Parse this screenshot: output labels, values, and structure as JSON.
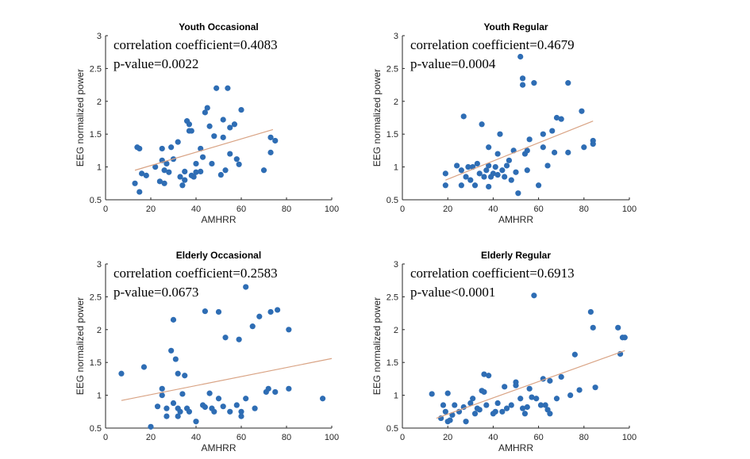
{
  "chart_data": [
    {
      "type": "scatter",
      "title": "Youth Occasional",
      "xlabel": "AMHRR",
      "ylabel": "EEG normalized power",
      "xlim": [
        0,
        100
      ],
      "ylim": [
        0.5,
        3
      ],
      "xticks": [
        "0",
        "20",
        "40",
        "60",
        "80",
        "100"
      ],
      "yticks": [
        "0.5",
        "1",
        "1.5",
        "2",
        "2.5",
        "3"
      ],
      "annotations": [
        "correlation coefficient=0.4083",
        "p-value=0.0022"
      ],
      "marker_color": "#2e6db4",
      "fit_color": "#d9a384",
      "fit_line": [
        [
          13,
          0.95
        ],
        [
          74,
          1.57
        ]
      ],
      "points": [
        [
          13,
          0.75
        ],
        [
          14,
          1.3
        ],
        [
          15,
          0.62
        ],
        [
          15,
          1.28
        ],
        [
          16,
          0.9
        ],
        [
          18,
          0.87
        ],
        [
          22,
          1.0
        ],
        [
          24,
          0.78
        ],
        [
          25,
          1.28
        ],
        [
          25,
          1.1
        ],
        [
          26,
          0.75
        ],
        [
          26,
          0.95
        ],
        [
          27,
          1.05
        ],
        [
          28,
          0.92
        ],
        [
          29,
          1.3
        ],
        [
          30,
          1.12
        ],
        [
          32,
          1.38
        ],
        [
          33,
          0.85
        ],
        [
          34,
          0.72
        ],
        [
          35,
          0.8
        ],
        [
          35,
          0.93
        ],
        [
          36,
          1.7
        ],
        [
          37,
          1.55
        ],
        [
          37,
          1.65
        ],
        [
          38,
          0.87
        ],
        [
          38,
          1.55
        ],
        [
          39,
          0.85
        ],
        [
          40,
          1.05
        ],
        [
          40,
          0.92
        ],
        [
          42,
          1.28
        ],
        [
          42,
          0.93
        ],
        [
          43,
          1.15
        ],
        [
          44,
          1.83
        ],
        [
          45,
          1.9
        ],
        [
          46,
          1.62
        ],
        [
          47,
          1.05
        ],
        [
          48,
          1.47
        ],
        [
          49,
          2.2
        ],
        [
          51,
          0.88
        ],
        [
          52,
          1.72
        ],
        [
          52,
          1.45
        ],
        [
          53,
          0.95
        ],
        [
          54,
          2.2
        ],
        [
          55,
          1.6
        ],
        [
          55,
          1.2
        ],
        [
          57,
          1.65
        ],
        [
          58,
          1.12
        ],
        [
          59,
          1.04
        ],
        [
          60,
          1.87
        ],
        [
          70,
          0.95
        ],
        [
          73,
          1.45
        ],
        [
          73,
          1.22
        ],
        [
          75,
          1.4
        ]
      ]
    },
    {
      "type": "scatter",
      "title": "Youth Regular",
      "xlabel": "AMHRR",
      "ylabel": "EEG normalized power",
      "xlim": [
        0,
        100
      ],
      "ylim": [
        0.5,
        3
      ],
      "xticks": [
        "0",
        "20",
        "40",
        "60",
        "80",
        "100"
      ],
      "yticks": [
        "0.5",
        "1",
        "1.5",
        "2",
        "2.5",
        "3"
      ],
      "annotations": [
        "correlation coefficient=0.4679",
        "p-value=0.0004"
      ],
      "marker_color": "#2e6db4",
      "fit_color": "#d9a384",
      "fit_line": [
        [
          19,
          0.8
        ],
        [
          84,
          1.7
        ]
      ],
      "points": [
        [
          19,
          0.9
        ],
        [
          19,
          0.72
        ],
        [
          24,
          1.02
        ],
        [
          26,
          0.95
        ],
        [
          26,
          0.72
        ],
        [
          27,
          1.77
        ],
        [
          28,
          0.85
        ],
        [
          29,
          1.0
        ],
        [
          30,
          0.8
        ],
        [
          31,
          1.0
        ],
        [
          32,
          0.72
        ],
        [
          33,
          1.05
        ],
        [
          34,
          0.9
        ],
        [
          35,
          1.65
        ],
        [
          36,
          0.85
        ],
        [
          37,
          0.95
        ],
        [
          38,
          1.02
        ],
        [
          38,
          1.3
        ],
        [
          38,
          0.7
        ],
        [
          39,
          0.85
        ],
        [
          40,
          0.9
        ],
        [
          41,
          1.0
        ],
        [
          42,
          1.2
        ],
        [
          42,
          0.88
        ],
        [
          43,
          1.5
        ],
        [
          44,
          0.95
        ],
        [
          45,
          0.85
        ],
        [
          46,
          1.02
        ],
        [
          47,
          1.1
        ],
        [
          48,
          0.8
        ],
        [
          49,
          1.25
        ],
        [
          50,
          0.92
        ],
        [
          51,
          0.6
        ],
        [
          52,
          2.68
        ],
        [
          53,
          2.35
        ],
        [
          53,
          2.25
        ],
        [
          54,
          1.2
        ],
        [
          55,
          1.25
        ],
        [
          55,
          0.95
        ],
        [
          56,
          1.42
        ],
        [
          58,
          2.28
        ],
        [
          60,
          0.72
        ],
        [
          62,
          1.5
        ],
        [
          62,
          1.3
        ],
        [
          64,
          1.02
        ],
        [
          66,
          1.55
        ],
        [
          67,
          1.22
        ],
        [
          68,
          1.75
        ],
        [
          70,
          1.73
        ],
        [
          73,
          1.22
        ],
        [
          73,
          2.28
        ],
        [
          79,
          1.85
        ],
        [
          80,
          1.3
        ],
        [
          84,
          1.35
        ],
        [
          84,
          1.4
        ]
      ]
    },
    {
      "type": "scatter",
      "title": "Elderly Occasional",
      "xlabel": "AMHRR",
      "ylabel": "EEG normalized power",
      "xlim": [
        0,
        100
      ],
      "ylim": [
        0.5,
        3
      ],
      "xticks": [
        "0",
        "20",
        "40",
        "60",
        "80",
        "100"
      ],
      "yticks": [
        "0.5",
        "1",
        "1.5",
        "2",
        "2.5",
        "3"
      ],
      "annotations": [
        "correlation coefficient=0.2583",
        "p-value=0.0673"
      ],
      "marker_color": "#2e6db4",
      "fit_color": "#d9a384",
      "fit_line": [
        [
          7,
          0.92
        ],
        [
          100,
          1.56
        ]
      ],
      "points": [
        [
          7,
          1.33
        ],
        [
          17,
          1.43
        ],
        [
          20,
          0.52
        ],
        [
          23,
          0.83
        ],
        [
          25,
          1.1
        ],
        [
          25,
          1.0
        ],
        [
          27,
          0.8
        ],
        [
          27,
          0.68
        ],
        [
          29,
          1.68
        ],
        [
          30,
          2.15
        ],
        [
          30,
          0.88
        ],
        [
          31,
          1.55
        ],
        [
          32,
          1.33
        ],
        [
          32,
          0.8
        ],
        [
          32,
          0.68
        ],
        [
          33,
          0.75
        ],
        [
          34,
          1.02
        ],
        [
          35,
          1.3
        ],
        [
          36,
          0.8
        ],
        [
          37,
          0.75
        ],
        [
          40,
          0.6
        ],
        [
          43,
          0.85
        ],
        [
          44,
          0.82
        ],
        [
          44,
          2.28
        ],
        [
          46,
          1.03
        ],
        [
          47,
          0.8
        ],
        [
          48,
          0.75
        ],
        [
          50,
          2.27
        ],
        [
          50,
          0.95
        ],
        [
          52,
          0.83
        ],
        [
          53,
          1.88
        ],
        [
          55,
          0.75
        ],
        [
          58,
          0.85
        ],
        [
          59,
          1.85
        ],
        [
          60,
          0.68
        ],
        [
          60,
          0.75
        ],
        [
          62,
          2.65
        ],
        [
          62,
          0.95
        ],
        [
          65,
          2.05
        ],
        [
          66,
          0.8
        ],
        [
          68,
          2.2
        ],
        [
          71,
          1.05
        ],
        [
          72,
          1.1
        ],
        [
          73,
          2.27
        ],
        [
          75,
          1.05
        ],
        [
          76,
          2.3
        ],
        [
          81,
          2.0
        ],
        [
          81,
          1.1
        ],
        [
          96,
          0.95
        ]
      ]
    },
    {
      "type": "scatter",
      "title": "Elderly Regular",
      "xlabel": "AMHRR",
      "ylabel": "EEG normalized power",
      "xlim": [
        0,
        100
      ],
      "ylim": [
        0.5,
        3
      ],
      "xticks": [
        "0",
        "20",
        "40",
        "60",
        "80",
        "100"
      ],
      "yticks": [
        "0.5",
        "1",
        "1.5",
        "2",
        "2.5",
        "3"
      ],
      "annotations": [
        "correlation coefficient=0.6913",
        "p-value<0.0001"
      ],
      "marker_color": "#2e6db4",
      "fit_color": "#d9a384",
      "fit_line": [
        [
          15,
          0.65
        ],
        [
          98,
          1.68
        ]
      ],
      "points": [
        [
          13,
          1.02
        ],
        [
          17,
          0.65
        ],
        [
          18,
          0.85
        ],
        [
          19,
          0.75
        ],
        [
          20,
          0.6
        ],
        [
          20,
          1.03
        ],
        [
          21,
          0.62
        ],
        [
          22,
          0.7
        ],
        [
          23,
          0.85
        ],
        [
          25,
          0.75
        ],
        [
          27,
          0.82
        ],
        [
          28,
          0.6
        ],
        [
          30,
          0.88
        ],
        [
          31,
          0.95
        ],
        [
          32,
          0.72
        ],
        [
          33,
          0.8
        ],
        [
          34,
          0.78
        ],
        [
          35,
          1.07
        ],
        [
          36,
          1.32
        ],
        [
          36,
          1.05
        ],
        [
          37,
          0.85
        ],
        [
          38,
          1.3
        ],
        [
          40,
          0.72
        ],
        [
          41,
          0.75
        ],
        [
          42,
          0.88
        ],
        [
          44,
          0.75
        ],
        [
          45,
          1.13
        ],
        [
          46,
          0.8
        ],
        [
          48,
          0.85
        ],
        [
          50,
          1.2
        ],
        [
          50,
          1.15
        ],
        [
          52,
          0.95
        ],
        [
          53,
          0.8
        ],
        [
          54,
          0.72
        ],
        [
          55,
          0.82
        ],
        [
          56,
          1.1
        ],
        [
          57,
          0.97
        ],
        [
          58,
          2.52
        ],
        [
          59,
          0.95
        ],
        [
          61,
          0.85
        ],
        [
          62,
          1.25
        ],
        [
          63,
          0.85
        ],
        [
          64,
          0.78
        ],
        [
          65,
          1.22
        ],
        [
          65,
          0.72
        ],
        [
          68,
          0.95
        ],
        [
          70,
          1.28
        ],
        [
          74,
          1.0
        ],
        [
          76,
          1.62
        ],
        [
          78,
          1.08
        ],
        [
          83,
          2.27
        ],
        [
          84,
          2.03
        ],
        [
          85,
          1.12
        ],
        [
          95,
          2.03
        ],
        [
          96,
          1.63
        ],
        [
          97,
          1.88
        ],
        [
          98,
          1.88
        ]
      ]
    }
  ]
}
